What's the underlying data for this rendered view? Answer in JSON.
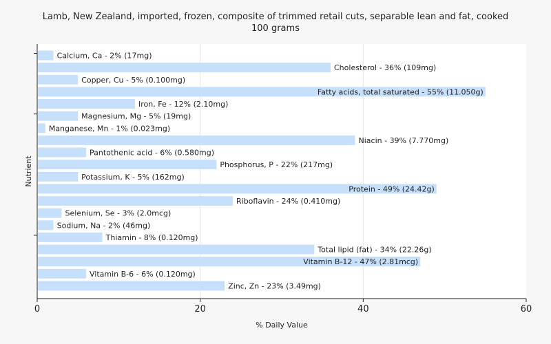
{
  "chart_data": {
    "type": "bar",
    "orientation": "horizontal",
    "title_lines": [
      "Lamb, New Zealand, imported, frozen, composite of trimmed retail cuts, separable lean and fat, cooked",
      "100 grams"
    ],
    "xlabel": "% Daily Value",
    "ylabel": "Nutrient",
    "xlim": [
      0,
      60
    ],
    "xticks": [
      "0",
      "20",
      "40",
      "60"
    ],
    "grid": true,
    "bar_color": "#c6e0fb",
    "categories": [
      "Calcium, Ca",
      "Cholesterol",
      "Copper, Cu",
      "Fatty acids, total saturated",
      "Iron, Fe",
      "Magnesium, Mg",
      "Manganese, Mn",
      "Niacin",
      "Pantothenic acid",
      "Phosphorus, P",
      "Potassium, K",
      "Protein",
      "Riboflavin",
      "Selenium, Se",
      "Sodium, Na",
      "Thiamin",
      "Total lipid (fat)",
      "Vitamin B-12",
      "Vitamin B-6",
      "Zinc, Zn"
    ],
    "values": [
      2,
      36,
      5,
      55,
      12,
      5,
      1,
      39,
      6,
      22,
      5,
      49,
      24,
      3,
      2,
      8,
      34,
      47,
      6,
      23
    ],
    "labels": [
      "Calcium, Ca - 2% (17mg)",
      "Cholesterol - 36% (109mg)",
      "Copper, Cu - 5% (0.100mg)",
      "Fatty acids, total saturated - 55% (11.050g)",
      "Iron, Fe - 12% (2.10mg)",
      "Magnesium, Mg - 5% (19mg)",
      "Manganese, Mn - 1% (0.023mg)",
      "Niacin - 39% (7.770mg)",
      "Pantothenic acid - 6% (0.580mg)",
      "Phosphorus, P - 22% (217mg)",
      "Potassium, K - 5% (162mg)",
      "Protein - 49% (24.42g)",
      "Riboflavin - 24% (0.410mg)",
      "Selenium, Se - 3% (2.0mcg)",
      "Sodium, Na - 2% (46mg)",
      "Thiamin - 8% (0.120mg)",
      "Total lipid (fat) - 34% (22.26g)",
      "Vitamin B-12 - 47% (2.81mcg)",
      "Vitamin B-6 - 6% (0.120mg)",
      "Zinc, Zn - 23% (3.49mg)"
    ]
  }
}
